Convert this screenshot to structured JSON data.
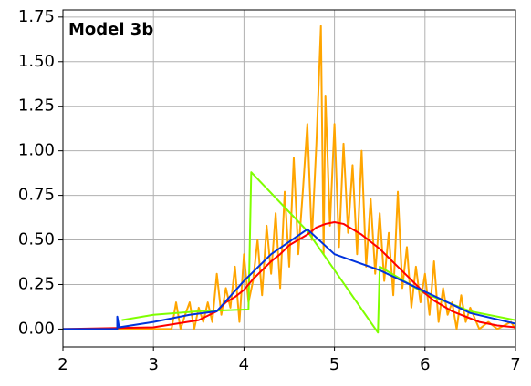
{
  "chart_data": {
    "type": "line",
    "title": "Model 3b",
    "xlim": [
      2,
      7
    ],
    "ylim": [
      -0.1,
      1.79
    ],
    "xticks": [
      2,
      3,
      4,
      5,
      6,
      7
    ],
    "yticks": [
      {
        "value": 0,
        "label": "0.00"
      },
      {
        "value": 0.25,
        "label": "0.25"
      },
      {
        "value": 0.5,
        "label": "0.50"
      },
      {
        "value": 0.75,
        "label": "0.75"
      },
      {
        "value": 1,
        "label": "1.00"
      },
      {
        "value": 1.25,
        "label": "1.25"
      },
      {
        "value": 1.5,
        "label": "1.50"
      },
      {
        "value": 1.75,
        "label": "1.75"
      }
    ],
    "grid": true,
    "series": [
      {
        "color": "#ffa500",
        "x": [
          2,
          3.2,
          3.25,
          3.3,
          3.35,
          3.4,
          3.45,
          3.5,
          3.55,
          3.6,
          3.65,
          3.7,
          3.75,
          3.8,
          3.85,
          3.9,
          3.95,
          4.0,
          4.05,
          4.1,
          4.15,
          4.2,
          4.25,
          4.3,
          4.35,
          4.4,
          4.45,
          4.5,
          4.55,
          4.6,
          4.65,
          4.7,
          4.75,
          4.8,
          4.85,
          4.88,
          4.9,
          4.95,
          5.0,
          5.05,
          5.1,
          5.15,
          5.2,
          5.25,
          5.3,
          5.35,
          5.4,
          5.45,
          5.5,
          5.55,
          5.6,
          5.65,
          5.7,
          5.75,
          5.8,
          5.85,
          5.9,
          5.95,
          6.0,
          6.05,
          6.1,
          6.15,
          6.2,
          6.25,
          6.3,
          6.35,
          6.4,
          6.45,
          6.5,
          6.6,
          6.7,
          6.8,
          6.95,
          7
        ],
        "values": [
          0,
          0,
          0.15,
          0,
          0.08,
          0.15,
          0,
          0.12,
          0.04,
          0.15,
          0.04,
          0.31,
          0.08,
          0.23,
          0.12,
          0.35,
          0.04,
          0.42,
          0.15,
          0.27,
          0.5,
          0.19,
          0.58,
          0.31,
          0.65,
          0.23,
          0.77,
          0.35,
          0.96,
          0.42,
          0.77,
          1.15,
          0.5,
          1.04,
          1.7,
          0.42,
          1.31,
          0.58,
          1.15,
          0.46,
          1.04,
          0.54,
          0.92,
          0.42,
          1.0,
          0.35,
          0.73,
          0.31,
          0.65,
          0.27,
          0.54,
          0.19,
          0.77,
          0.23,
          0.46,
          0.12,
          0.35,
          0.15,
          0.31,
          0.08,
          0.38,
          0.04,
          0.23,
          0.08,
          0.15,
          0,
          0.19,
          0.04,
          0.12,
          0,
          0.04,
          0,
          0.04,
          0
        ]
      },
      {
        "color": "#7fff00",
        "x": [
          2.65,
          3,
          3.5,
          4.05,
          4.08,
          4.7,
          5.48,
          5.5,
          6,
          6.5,
          7
        ],
        "values": [
          0.05,
          0.08,
          0.1,
          0.11,
          0.88,
          0.55,
          -0.02,
          0.35,
          0.2,
          0.1,
          0.05
        ]
      },
      {
        "color": "#ff0000",
        "x": [
          2,
          3,
          3.5,
          3.7,
          3.8,
          3.9,
          4,
          4.1,
          4.2,
          4.3,
          4.4,
          4.5,
          4.6,
          4.7,
          4.8,
          4.9,
          5,
          5.1,
          5.2,
          5.3,
          5.4,
          5.5,
          5.6,
          5.7,
          5.8,
          5.9,
          6,
          6.1,
          6.2,
          6.3,
          6.4,
          6.6,
          6.8,
          7
        ],
        "values": [
          0,
          0.01,
          0.05,
          0.1,
          0.15,
          0.18,
          0.22,
          0.28,
          0.33,
          0.38,
          0.42,
          0.47,
          0.5,
          0.53,
          0.57,
          0.59,
          0.6,
          0.59,
          0.56,
          0.53,
          0.49,
          0.45,
          0.4,
          0.35,
          0.3,
          0.25,
          0.2,
          0.16,
          0.13,
          0.1,
          0.08,
          0.04,
          0.02,
          0.01
        ]
      },
      {
        "color": "#0033dd",
        "x": [
          2,
          2.6,
          2.6,
          2.62,
          3,
          3.4,
          3.7,
          4,
          4.3,
          4.7,
          5,
          5.5,
          6,
          6.5,
          7
        ],
        "values": [
          0,
          0,
          0.07,
          0.01,
          0.04,
          0.08,
          0.1,
          0.27,
          0.42,
          0.56,
          0.42,
          0.33,
          0.21,
          0.09,
          0.03
        ]
      }
    ]
  }
}
